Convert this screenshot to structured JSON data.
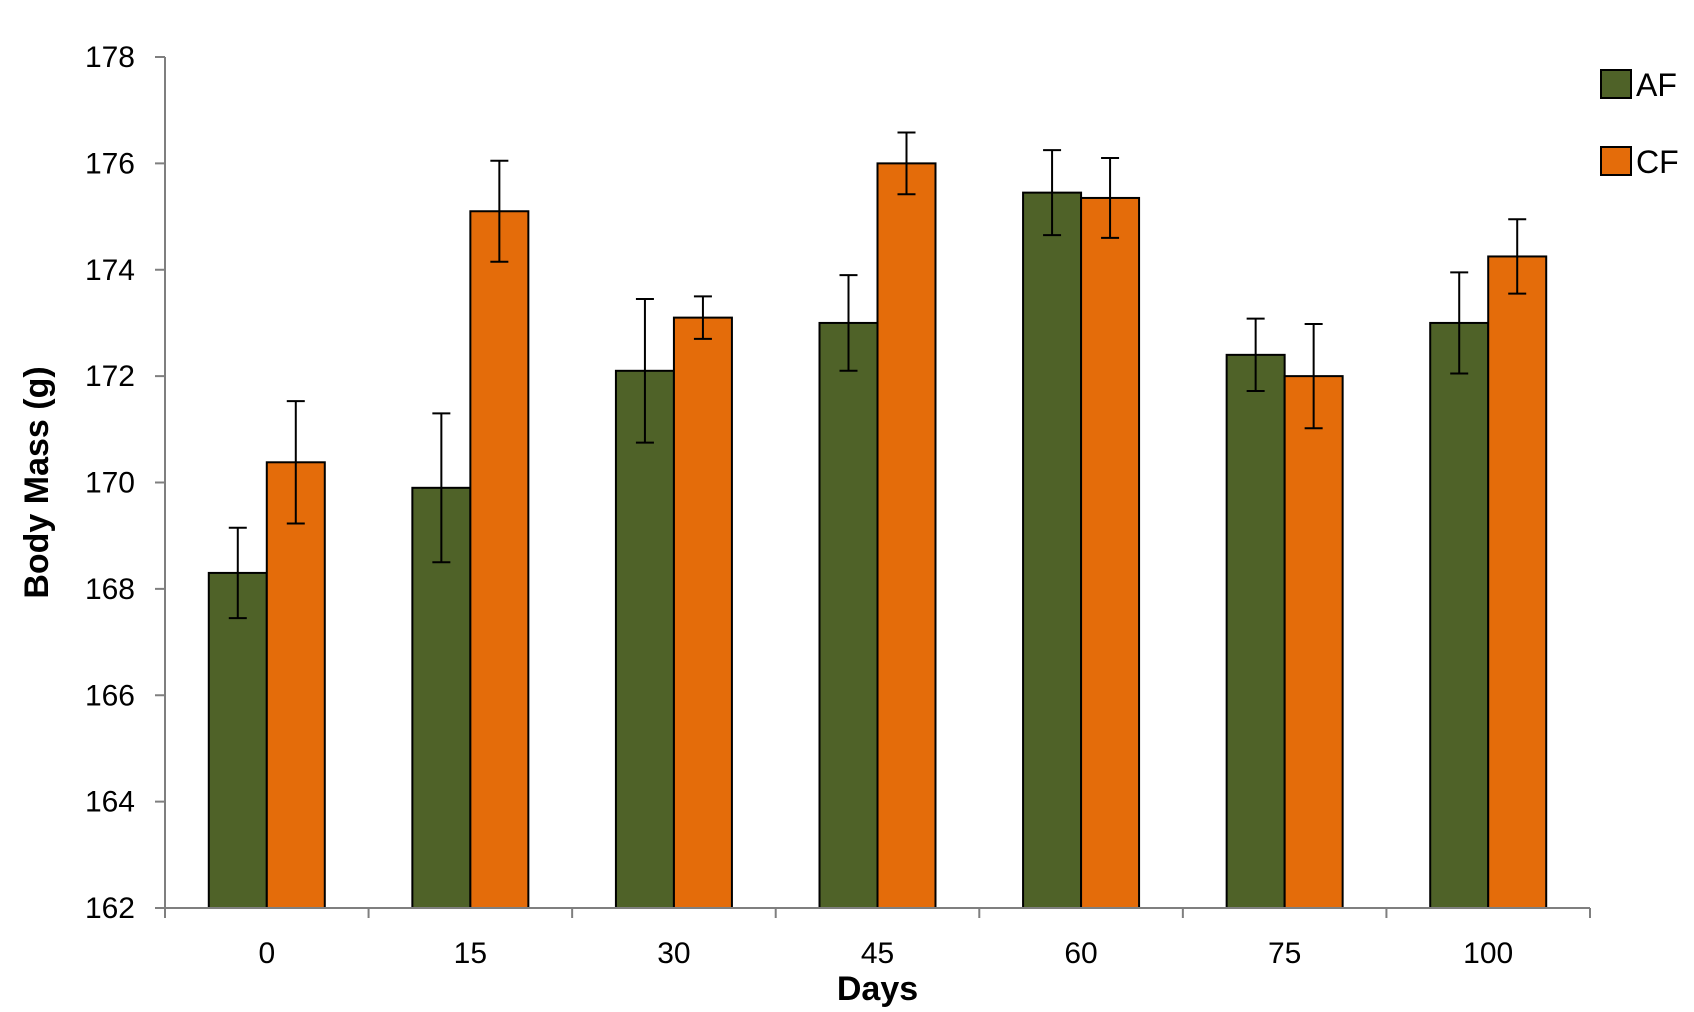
{
  "chart_data": {
    "type": "bar",
    "title": "",
    "xlabel": "Days",
    "ylabel": "Body Mass (g)",
    "categories": [
      "0",
      "15",
      "30",
      "45",
      "60",
      "75",
      "100"
    ],
    "ylim": [
      162,
      178
    ],
    "yticks": [
      162,
      164,
      166,
      168,
      170,
      172,
      174,
      176,
      178
    ],
    "grid": false,
    "legend_position": "top-right",
    "series": [
      {
        "name": "AF",
        "color": "#4f6228",
        "values": [
          168.3,
          169.9,
          172.1,
          173.0,
          175.45,
          172.4,
          173.0
        ],
        "errors": [
          0.85,
          1.4,
          1.35,
          0.9,
          0.8,
          0.68,
          0.95
        ]
      },
      {
        "name": "CF",
        "color": "#e46c0a",
        "values": [
          170.38,
          175.1,
          173.1,
          176.0,
          175.35,
          172.0,
          174.25
        ],
        "errors": [
          1.15,
          0.95,
          0.4,
          0.58,
          0.75,
          0.98,
          0.7
        ]
      }
    ]
  }
}
